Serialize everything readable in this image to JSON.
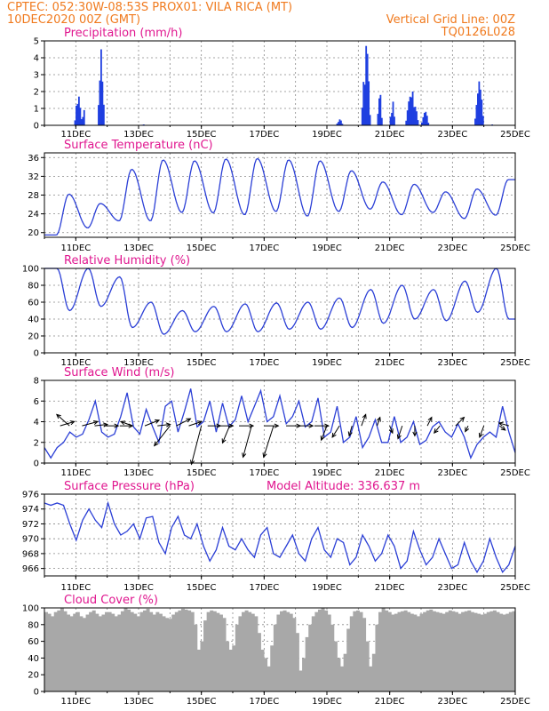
{
  "header": {
    "line1_left": "CPTEC:   052:30W-08:53S   PROX01: VILA RICA (MT)",
    "line2_left": "10DEC2020 00Z (GMT)",
    "line2_right": "Vertical Grid Line: 00Z",
    "line3_right": "TQ0126L028"
  },
  "x_ticks": [
    "11DEC",
    "13DEC",
    "15DEC",
    "17DEC",
    "19DEC",
    "21DEC",
    "23DEC",
    "25DEC"
  ],
  "colors": {
    "line": "#2b3fd6",
    "bar": "#1f3fe0",
    "cloud": "#a8a8a8",
    "title": "#e0168f",
    "header": "#f07a1e"
  },
  "chart_data": [
    {
      "type": "bar",
      "title": "Precipitation (mm/h)",
      "ylim": [
        0,
        5
      ],
      "yticks": [
        0,
        1,
        2,
        3,
        4,
        5
      ],
      "x_unit": "days since 10DEC2020 00Z",
      "xlim": [
        0,
        15
      ],
      "events": [
        {
          "x": 0.95,
          "w": 0.25,
          "peak": 1.7
        },
        {
          "x": 1.2,
          "w": 0.1,
          "peak": 0.9
        },
        {
          "x": 1.7,
          "w": 0.2,
          "peak": 4.5
        },
        {
          "x": 3.1,
          "w": 0.1,
          "peak": 0.05
        },
        {
          "x": 9.3,
          "w": 0.2,
          "peak": 0.35
        },
        {
          "x": 10.1,
          "w": 0.3,
          "peak": 4.7
        },
        {
          "x": 10.6,
          "w": 0.15,
          "peak": 1.8
        },
        {
          "x": 11.0,
          "w": 0.15,
          "peak": 1.4
        },
        {
          "x": 11.5,
          "w": 0.4,
          "peak": 2.0
        },
        {
          "x": 12.0,
          "w": 0.25,
          "peak": 0.8
        },
        {
          "x": 13.7,
          "w": 0.3,
          "peak": 2.6
        },
        {
          "x": 14.2,
          "w": 0.1,
          "peak": 0.05
        }
      ]
    },
    {
      "type": "line",
      "title": "Surface Temperature (nC)",
      "ylim": [
        19,
        37
      ],
      "yticks": [
        20,
        24,
        28,
        32,
        36
      ],
      "xlim": [
        0,
        15
      ],
      "daily_max": [
        28.2,
        26.2,
        33.5,
        35.5,
        35.3,
        35.7,
        35.8,
        35.5,
        35.3,
        33.2,
        30.8,
        30.3,
        28.7,
        29.3,
        31.3
      ],
      "daily_min": [
        19.5,
        21.0,
        22.5,
        22.5,
        24.3,
        24.2,
        23.8,
        24.5,
        23.5,
        24.5,
        25.0,
        23.8,
        24.3,
        23.0,
        23.7
      ],
      "peak_phase": 0.78,
      "min_phase": 0.38
    },
    {
      "type": "line",
      "title": "Relative Humidity (%)",
      "ylim": [
        0,
        100
      ],
      "yticks": [
        0,
        20,
        40,
        60,
        80,
        100
      ],
      "xlim": [
        0,
        15
      ],
      "daily_max": [
        100,
        100,
        90,
        60,
        50,
        55,
        58,
        59,
        60,
        65,
        75,
        80,
        75,
        85,
        100
      ],
      "daily_min": [
        50,
        55,
        30,
        22,
        25,
        25,
        25,
        28,
        28,
        30,
        35,
        40,
        38,
        48,
        40
      ],
      "peak_phase": 0.4,
      "min_phase": 0.8
    },
    {
      "type": "line",
      "title": "Surface Wind (m/s)",
      "ylim": [
        0,
        8
      ],
      "yticks": [
        0,
        2,
        4,
        6,
        8
      ],
      "xlim": [
        0,
        15
      ],
      "values": [
        1.5,
        0.5,
        1.5,
        2.0,
        3.0,
        2.5,
        2.8,
        4.2,
        6.0,
        3.0,
        2.5,
        2.8,
        4.5,
        6.8,
        3.5,
        2.8,
        5.2,
        3.5,
        2.0,
        5.5,
        6.0,
        3.0,
        5.0,
        7.2,
        3.5,
        4.0,
        6.0,
        3.0,
        5.8,
        3.5,
        4.2,
        6.5,
        4.0,
        5.5,
        7.0,
        4.0,
        4.5,
        6.5,
        3.8,
        4.5,
        6.0,
        3.5,
        4.0,
        6.3,
        2.5,
        3.0,
        5.5,
        2.0,
        2.5,
        4.5,
        1.5,
        2.5,
        4.2,
        2.0,
        2.0,
        4.5,
        2.0,
        2.5,
        4.0,
        1.8,
        2.2,
        3.5,
        4.0,
        3.0,
        2.5,
        3.8,
        2.5,
        0.5,
        1.8,
        2.5,
        3.0,
        2.5,
        5.5,
        3.0,
        1.0
      ],
      "arrows": [
        {
          "x": 0.5,
          "u": 1.0,
          "v": 0.3
        },
        {
          "x": 0.8,
          "u": -0.9,
          "v": 0.8
        },
        {
          "x": 1.2,
          "u": 1.1,
          "v": 0.3
        },
        {
          "x": 1.6,
          "u": 0.9,
          "v": 0.1
        },
        {
          "x": 1.9,
          "u": 1.0,
          "v": 0.0
        },
        {
          "x": 2.4,
          "u": 0.9,
          "v": 0.0
        },
        {
          "x": 2.8,
          "u": -0.8,
          "v": 0.3
        },
        {
          "x": 3.2,
          "u": 1.0,
          "v": 0.4
        },
        {
          "x": 3.6,
          "u": 0.9,
          "v": 0.1
        },
        {
          "x": 4.0,
          "u": -1.1,
          "v": -1.4
        },
        {
          "x": 4.2,
          "u": 1.0,
          "v": 0.5
        },
        {
          "x": 4.6,
          "u": 0.9,
          "v": 0.3
        },
        {
          "x": 5.0,
          "u": -0.7,
          "v": -2.7
        },
        {
          "x": 5.2,
          "u": 0.9,
          "v": 0.0
        },
        {
          "x": 5.6,
          "u": 0.9,
          "v": 0.0
        },
        {
          "x": 5.9,
          "u": -0.5,
          "v": -1.2
        },
        {
          "x": 6.2,
          "u": 1.0,
          "v": 0.0
        },
        {
          "x": 6.6,
          "u": -0.6,
          "v": -2.2
        },
        {
          "x": 7.0,
          "u": 1.0,
          "v": 0.0
        },
        {
          "x": 7.3,
          "u": -0.7,
          "v": -2.2
        },
        {
          "x": 7.7,
          "u": 1.0,
          "v": 0.0
        },
        {
          "x": 8.1,
          "u": 1.0,
          "v": 0.0
        },
        {
          "x": 8.6,
          "u": 1.0,
          "v": 0.0
        },
        {
          "x": 9.0,
          "u": -0.4,
          "v": -1.0
        },
        {
          "x": 9.4,
          "u": -0.5,
          "v": -0.8
        },
        {
          "x": 9.8,
          "u": -0.2,
          "v": -0.7
        },
        {
          "x": 10.1,
          "u": 0.3,
          "v": 0.8
        },
        {
          "x": 10.6,
          "u": 0.2,
          "v": 0.6
        },
        {
          "x": 11.0,
          "u": 0.2,
          "v": -0.5
        },
        {
          "x": 11.4,
          "u": -0.3,
          "v": -0.9
        },
        {
          "x": 11.8,
          "u": 0.0,
          "v": -0.7
        },
        {
          "x": 12.2,
          "u": 0.3,
          "v": 0.6
        },
        {
          "x": 12.6,
          "u": -0.4,
          "v": -0.5
        },
        {
          "x": 13.1,
          "u": 0.6,
          "v": 0.6
        },
        {
          "x": 13.5,
          "u": -0.2,
          "v": -0.4
        },
        {
          "x": 14.0,
          "u": -0.3,
          "v": -0.8
        },
        {
          "x": 14.5,
          "u": 0.4,
          "v": -0.3
        },
        {
          "x": 14.8,
          "u": -0.7,
          "v": 0.2
        }
      ]
    },
    {
      "type": "line",
      "title": "Surface Pressure (hPa)",
      "annotation": "Model Altitude: 336.637 m",
      "ylim": [
        965,
        976
      ],
      "yticks": [
        966,
        968,
        970,
        972,
        974,
        976
      ],
      "xlim": [
        0,
        15
      ],
      "values": [
        974.8,
        974.5,
        974.8,
        974.5,
        972,
        969.8,
        972.5,
        974,
        972.5,
        971.5,
        974.8,
        972,
        970.5,
        971,
        972,
        970,
        972.8,
        973,
        969.5,
        968,
        971.5,
        973,
        970.5,
        970,
        972,
        969,
        967,
        968.5,
        971.5,
        969,
        968.5,
        970,
        968.5,
        967.5,
        970.5,
        971.5,
        968,
        967.5,
        969,
        970.5,
        968,
        967,
        970,
        971.5,
        968.5,
        967.5,
        970,
        969.5,
        966.5,
        967.5,
        970.5,
        969,
        967,
        968,
        970.5,
        969,
        966,
        967,
        971,
        968.5,
        966.5,
        967.5,
        970,
        968,
        966,
        966.5,
        969.5,
        967,
        965.5,
        967,
        970,
        967.5,
        965.5,
        966.5,
        969
      ]
    },
    {
      "type": "area",
      "title": "Cloud Cover (%)",
      "ylim": [
        0,
        100
      ],
      "yticks": [
        0,
        20,
        40,
        60,
        80,
        100
      ],
      "xlim": [
        0,
        15
      ],
      "values": [
        95,
        93,
        90,
        95,
        97,
        100,
        96,
        92,
        90,
        93,
        95,
        90,
        88,
        92,
        95,
        97,
        93,
        90,
        92,
        95,
        95,
        93,
        90,
        92,
        96,
        100,
        98,
        95,
        93,
        90,
        95,
        97,
        99,
        95,
        92,
        95,
        93,
        90,
        88,
        87,
        92,
        95,
        97,
        99,
        98,
        97,
        95,
        80,
        50,
        60,
        85,
        95,
        97,
        96,
        94,
        92,
        88,
        60,
        50,
        55,
        80,
        90,
        95,
        97,
        95,
        93,
        90,
        70,
        50,
        40,
        30,
        55,
        80,
        92,
        96,
        97,
        95,
        93,
        88,
        70,
        25,
        40,
        65,
        80,
        90,
        95,
        98,
        100,
        97,
        92,
        80,
        60,
        40,
        30,
        45,
        75,
        90,
        96,
        97,
        95,
        88,
        60,
        30,
        45,
        80,
        95,
        100,
        97,
        95,
        92,
        93,
        95,
        96,
        97,
        95,
        93,
        92,
        90,
        93,
        95,
        97,
        98,
        96,
        95,
        94,
        93,
        95,
        97,
        96,
        95,
        93,
        95,
        96,
        97,
        95,
        94,
        93,
        92,
        93,
        95,
        96,
        97,
        95,
        93,
        92,
        93,
        95,
        96
      ]
    }
  ]
}
